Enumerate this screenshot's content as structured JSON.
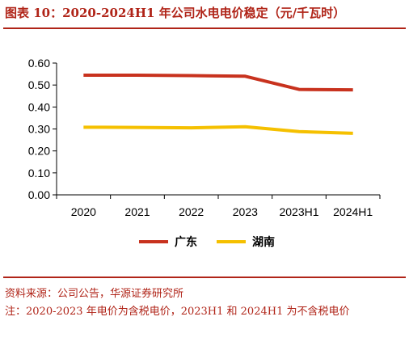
{
  "title": "图表 10：2020-2024H1 年公司水电电价稳定（元/千瓦时）",
  "source": "资料来源：公司公告，华源证券研究所",
  "note": "注：2020-2023 年电价为含税电价，2023H1 和 2024H1 为不含税电价",
  "colors": {
    "accent": "#b02418",
    "guangdong": "#c8321e",
    "hunan": "#f5c000"
  },
  "chart_data": {
    "type": "line",
    "x": [
      "2020",
      "2021",
      "2022",
      "2023",
      "2023H1",
      "2024H1"
    ],
    "ylim": [
      0,
      0.6
    ],
    "yticks": [
      "0.00",
      "0.10",
      "0.20",
      "0.30",
      "0.40",
      "0.50",
      "0.60"
    ],
    "grid": false,
    "legend": "bottom",
    "series": [
      {
        "name": "广东",
        "values": [
          0.545,
          0.545,
          0.543,
          0.54,
          0.48,
          0.478
        ]
      },
      {
        "name": "湖南",
        "values": [
          0.308,
          0.307,
          0.305,
          0.31,
          0.288,
          0.28
        ]
      }
    ]
  }
}
